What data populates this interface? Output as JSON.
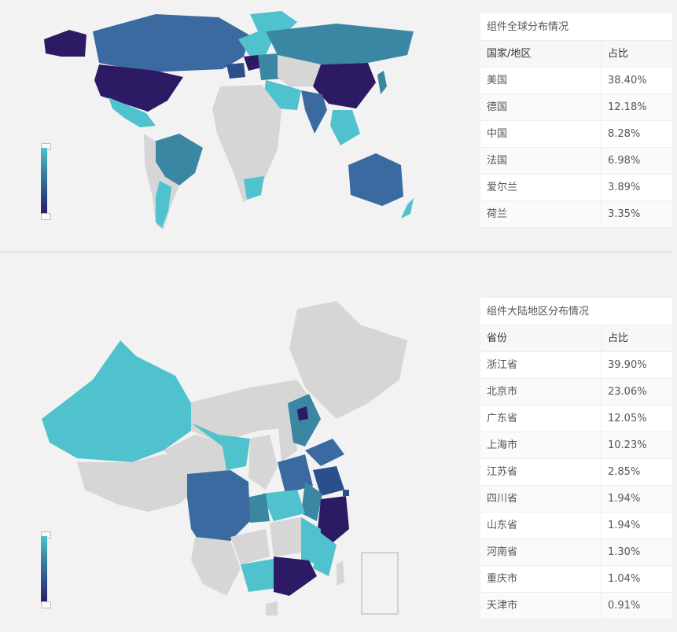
{
  "world_section": {
    "table": {
      "caption": "组件全球分布情况",
      "headers": [
        "国家/地区",
        "占比"
      ],
      "rows": [
        [
          "美国",
          "38.40%"
        ],
        [
          "德国",
          "12.18%"
        ],
        [
          "中国",
          "8.28%"
        ],
        [
          "法国",
          "6.98%"
        ],
        [
          "爱尔兰",
          "3.89%"
        ],
        [
          "荷兰",
          "3.35%"
        ]
      ]
    },
    "legend": {
      "colors": [
        "#4fc2cd",
        "#3a86a3",
        "#2b4f8a",
        "#2d1a64"
      ]
    }
  },
  "china_section": {
    "table": {
      "caption": "组件大陆地区分布情况",
      "headers": [
        "省份",
        "占比"
      ],
      "rows": [
        [
          "浙江省",
          "39.90%"
        ],
        [
          "北京市",
          "23.06%"
        ],
        [
          "广东省",
          "12.05%"
        ],
        [
          "上海市",
          "10.23%"
        ],
        [
          "江苏省",
          "2.85%"
        ],
        [
          "四川省",
          "1.94%"
        ],
        [
          "山东省",
          "1.94%"
        ],
        [
          "河南省",
          "1.30%"
        ],
        [
          "重庆市",
          "1.04%"
        ],
        [
          "天津市",
          "0.91%"
        ]
      ]
    },
    "legend": {
      "colors": [
        "#4fc2cd",
        "#3a86a3",
        "#2b4f8a",
        "#2d1a64"
      ]
    }
  },
  "colors": {
    "unselected": "#d6d6d6",
    "light": "#4fc2cd",
    "mid": "#3a86a3",
    "dark": "#2b4f8a",
    "darkest": "#2d1a64"
  }
}
